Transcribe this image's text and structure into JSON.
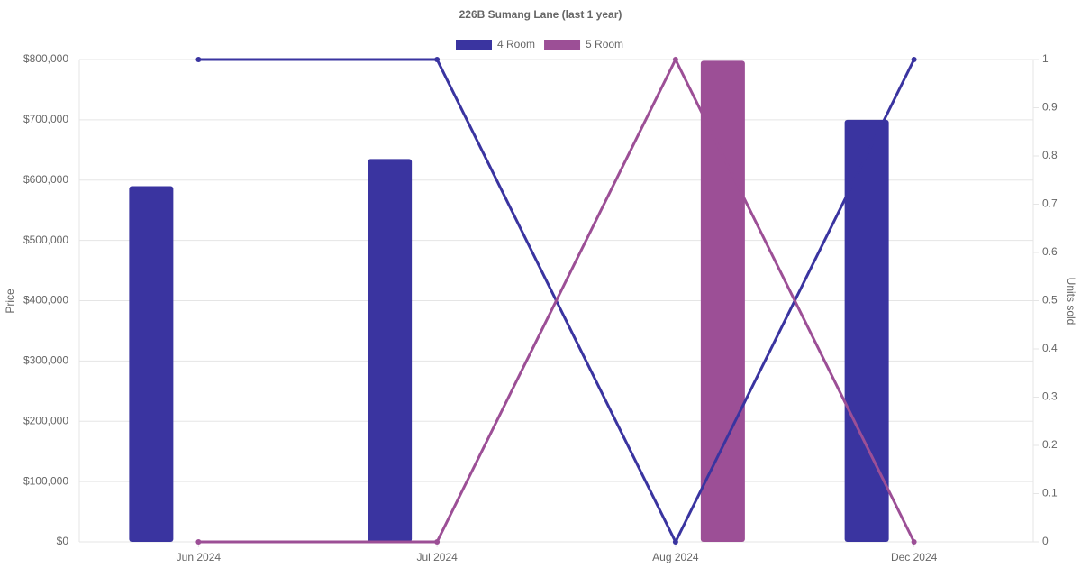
{
  "chart_data": {
    "type": "bar",
    "title": "226B Sumang Lane (last 1 year)",
    "y_label": "Price",
    "y2_label": "Units sold",
    "categories": [
      "Jun 2024",
      "Jul 2024",
      "Aug 2024",
      "Dec 2024"
    ],
    "series": [
      {
        "name": "4 Room",
        "color": "#3a34a0",
        "values": [
          590000,
          635000,
          null,
          700000
        ],
        "units_sold": [
          1,
          1,
          0,
          1
        ]
      },
      {
        "name": "5 Room",
        "color": "#9c4f96",
        "values": [
          null,
          null,
          798000,
          null
        ],
        "units_sold": [
          0,
          0,
          1,
          0
        ]
      }
    ],
    "ylim": [
      0,
      800000
    ],
    "yticks": [
      {
        "value": 0,
        "label": "$0"
      },
      {
        "value": 100000,
        "label": "$100,000"
      },
      {
        "value": 200000,
        "label": "$200,000"
      },
      {
        "value": 300000,
        "label": "$300,000"
      },
      {
        "value": 400000,
        "label": "$400,000"
      },
      {
        "value": 500000,
        "label": "$500,000"
      },
      {
        "value": 600000,
        "label": "$600,000"
      },
      {
        "value": 700000,
        "label": "$700,000"
      },
      {
        "value": 800000,
        "label": "$800,000"
      }
    ],
    "y2lim": [
      0,
      1
    ],
    "y2ticks": [
      0,
      0.1,
      0.2,
      0.3,
      0.4,
      0.5,
      0.6,
      0.7,
      0.8,
      0.9,
      1
    ],
    "grid": true
  }
}
